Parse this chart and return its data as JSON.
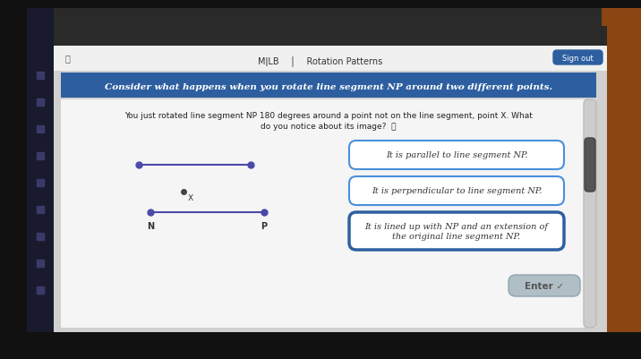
{
  "bg_outer": "#1a1a1a",
  "bg_screen": "#2a2a2a",
  "bg_taskbar": "#1e3a5f",
  "bg_content": "#e8e8e8",
  "bg_white": "#ffffff",
  "header_bg": "#2d5fa0",
  "header_text": "Consider what happens when you rotate line segment NP around two different points.",
  "body_text_line1": "You just rotated line segment NP 180 degrees around a point not on the line segment, point X. What",
  "body_text_line2": "do you notice about its image?",
  "option1": "It is parallel to line segment NP.",
  "option2": "It is perpendicular to line segment NP.",
  "option3_line1": "It is lined up with NP and an extension of",
  "option3_line2": "the original line segment NP.",
  "option3_selected": true,
  "enter_text": "Enter ✓",
  "title_bar_text": "MǀLB    │    Rotation Patterns",
  "sign_out": "Sign out",
  "segment_color": "#4a4aaa",
  "point_color": "#4a4aaa",
  "x_point_color": "#333333"
}
